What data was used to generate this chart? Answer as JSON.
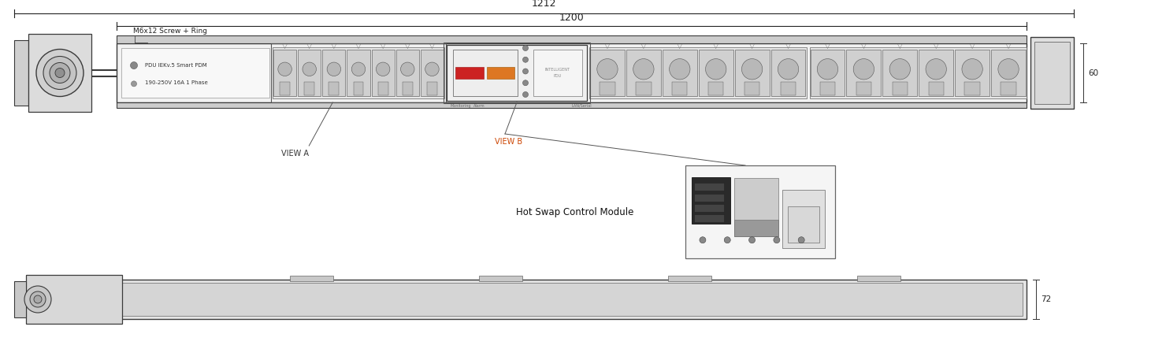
{
  "bg_color": "#ffffff",
  "lc": "#3a3a3a",
  "dim_color": "#222222",
  "dim_1212": "1212",
  "dim_1200": "1200",
  "dim_60": "60",
  "dim_72": "72",
  "label_m6x12": "M6x12 Screw + Ring",
  "label_pdu_line1": "PDU IEKv.5 Smart PDM",
  "label_pdu_line2": "190-250V 16A 1 Phase",
  "label_view_a": "VIEW A",
  "label_view_b": "VIEW B",
  "label_view_b_color": "#cc4400",
  "label_hot_swap": "Hot Swap Control Module",
  "fc_body": "#f2f2f2",
  "fc_strip": "#d5d5d5",
  "fc_label_panel": "#f8f8f8",
  "fc_outlet_group": "#e5e5e5",
  "fc_outlet": "#d2d2d2",
  "fc_outlet_hole": "#aaaaaa",
  "fc_ctrl": "#f0f0f0",
  "fc_plug": "#e2e2e2",
  "fc_inset": "#f8f8f8"
}
